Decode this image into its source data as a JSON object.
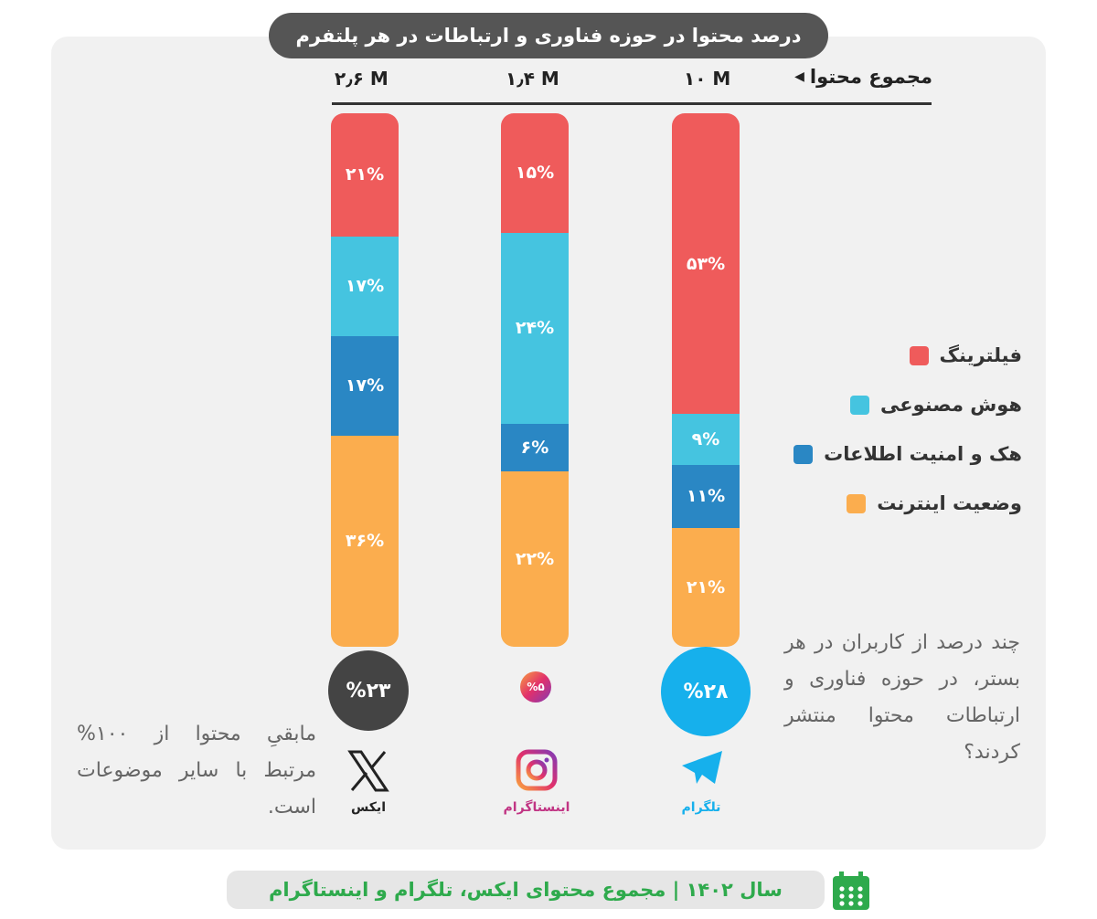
{
  "chart_data": {
    "type": "bar",
    "stacked": true,
    "normalized": true,
    "title": "درصد محتوا در حوزه فناوری و ارتباطات در هر پلتفرم",
    "categories": [
      "ایکس",
      "اینستاگرام",
      "تلگرام"
    ],
    "totals_label": "مجموع محتوا",
    "totals": [
      "۲٫۶ M",
      "۱٫۴ M",
      "۱۰ M"
    ],
    "series": [
      {
        "name": "فیلترینگ",
        "color": "#ef5b5b",
        "values": [
          21,
          15,
          53
        ]
      },
      {
        "name": "هوش مصنوعی",
        "color": "#45c4e0",
        "values": [
          17,
          24,
          9
        ]
      },
      {
        "name": "هک و امنیت اطلاعات",
        "color": "#2a87c4",
        "values": [
          17,
          6,
          11
        ]
      },
      {
        "name": "وضعیت اینترنت",
        "color": "#fbad4e",
        "values": [
          36,
          22,
          21
        ]
      }
    ],
    "user_share": [
      "%۲۳",
      "%۵",
      "%۲۸"
    ],
    "legend": "right"
  },
  "platforms": [
    {
      "name": "ایکس",
      "color": "#444444",
      "icon": "x-logo-icon"
    },
    {
      "name": "اینستاگرام",
      "color": "#c13584",
      "icon": "instagram-logo-icon"
    },
    {
      "name": "تلگرام",
      "color": "#16b0ec",
      "icon": "telegram-logo-icon"
    }
  ],
  "question": "چند درصد از کاربران در هر بستر، در حوزه فناوری و ارتباطات محتوا منتشر کردند؟",
  "remainder_note": "مابقیِ محتوا از ۱۰۰% مرتبط با سایر موضوعات است.",
  "footer": "سال ۱۴۰۲  |  مجموع محتوای ایکس، تلگرام و اینستاگرام",
  "footer_icon": "calendar-icon"
}
